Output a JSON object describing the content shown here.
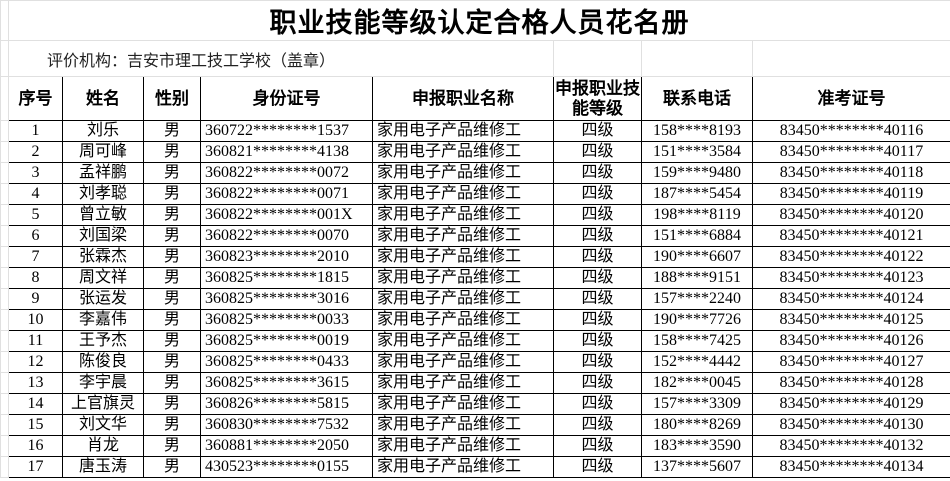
{
  "title": "职业技能等级认定合格人员花名册",
  "organization": "评价机构：吉安市理工技工学校（盖章）",
  "table": {
    "headers": [
      "序号",
      "姓名",
      "性别",
      "身份证号",
      "申报职业名称",
      "申报职业技能等级",
      "联系电话",
      "准考证号"
    ],
    "rows": [
      [
        "1",
        "刘乐",
        "男",
        "360722********1537",
        "家用电子产品维修工",
        "四级",
        "158****8193",
        "83450********40116"
      ],
      [
        "2",
        "周可峰",
        "男",
        "360821********4138",
        "家用电子产品维修工",
        "四级",
        "151****3584",
        "83450********40117"
      ],
      [
        "3",
        "孟祥鹏",
        "男",
        "360822********0072",
        "家用电子产品维修工",
        "四级",
        "159****9480",
        "83450********40118"
      ],
      [
        "4",
        "刘孝聪",
        "男",
        "360822********0071",
        "家用电子产品维修工",
        "四级",
        "187****5454",
        "83450********40119"
      ],
      [
        "5",
        "曾立敏",
        "男",
        "360822********001X",
        "家用电子产品维修工",
        "四级",
        "198****8119",
        "83450********40120"
      ],
      [
        "6",
        "刘国梁",
        "男",
        "360822********0070",
        "家用电子产品维修工",
        "四级",
        "151****6884",
        "83450********40121"
      ],
      [
        "7",
        "张霖杰",
        "男",
        "360823********2010",
        "家用电子产品维修工",
        "四级",
        "190****6607",
        "83450********40122"
      ],
      [
        "8",
        "周文祥",
        "男",
        "360825********1815",
        "家用电子产品维修工",
        "四级",
        "188****9151",
        "83450********40123"
      ],
      [
        "9",
        "张运发",
        "男",
        "360825********3016",
        "家用电子产品维修工",
        "四级",
        "157****2240",
        "83450********40124"
      ],
      [
        "10",
        "李嘉伟",
        "男",
        "360825********0033",
        "家用电子产品维修工",
        "四级",
        "190****7726",
        "83450********40125"
      ],
      [
        "11",
        "王予杰",
        "男",
        "360825********0019",
        "家用电子产品维修工",
        "四级",
        "158****7425",
        "83450********40126"
      ],
      [
        "12",
        "陈俊良",
        "男",
        "360825********0433",
        "家用电子产品维修工",
        "四级",
        "152****4442",
        "83450********40127"
      ],
      [
        "13",
        "李宇晨",
        "男",
        "360825********3615",
        "家用电子产品维修工",
        "四级",
        "182****0045",
        "83450********40128"
      ],
      [
        "14",
        "上官旗灵",
        "男",
        "360826********5815",
        "家用电子产品维修工",
        "四级",
        "157****3309",
        "83450********40129"
      ],
      [
        "15",
        "刘文华",
        "男",
        "360830********7532",
        "家用电子产品维修工",
        "四级",
        "180****8269",
        "83450********40130"
      ],
      [
        "16",
        "肖龙",
        "男",
        "360881********2050",
        "家用电子产品维修工",
        "四级",
        "183****3590",
        "83450********40132"
      ],
      [
        "17",
        "唐玉涛",
        "男",
        "430523********0155",
        "家用电子产品维修工",
        "四级",
        "137****5607",
        "83450********40134"
      ]
    ]
  }
}
